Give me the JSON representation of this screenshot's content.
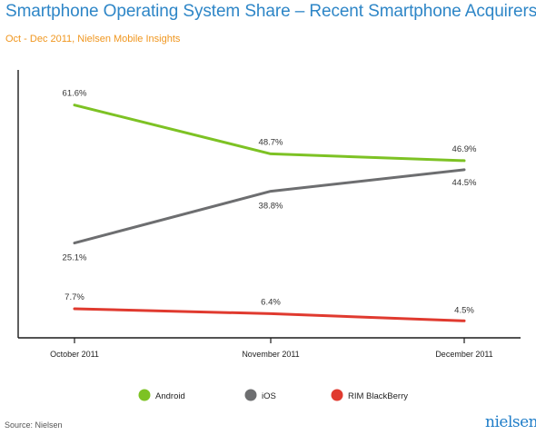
{
  "title": "Smartphone Operating System Share – Recent Smartphone Acquirers",
  "subtitle": "Oct - Dec 2011, Nielsen Mobile Insights",
  "source": "Source: Nielsen",
  "logo_text": "nielsen",
  "colors": {
    "title": "#2e86c7",
    "subtitle": "#f0961e",
    "android": "#7dc224",
    "ios": "#6d6e70",
    "blackberry": "#e03a2f"
  },
  "chart_data": {
    "type": "line",
    "x": [
      "October 2011",
      "November 2011",
      "December 2011"
    ],
    "series": [
      {
        "name": "Android",
        "values": [
          61.6,
          48.7,
          46.9
        ],
        "labels": [
          "61.6%",
          "48.7%",
          "46.9%"
        ],
        "color": "#7dc224"
      },
      {
        "name": "iOS",
        "values": [
          25.1,
          38.8,
          44.5
        ],
        "labels": [
          "25.1%",
          "38.8%",
          "44.5%"
        ],
        "color": "#6d6e70"
      },
      {
        "name": "RIM BlackBerry",
        "values": [
          7.7,
          6.4,
          4.5
        ],
        "labels": [
          "7.7%",
          "6.4%",
          "4.5%"
        ],
        "color": "#e03a2f"
      }
    ],
    "ylim": [
      0,
      70
    ],
    "xlabel": "",
    "ylabel": "",
    "grid": false,
    "legend_position": "bottom"
  }
}
